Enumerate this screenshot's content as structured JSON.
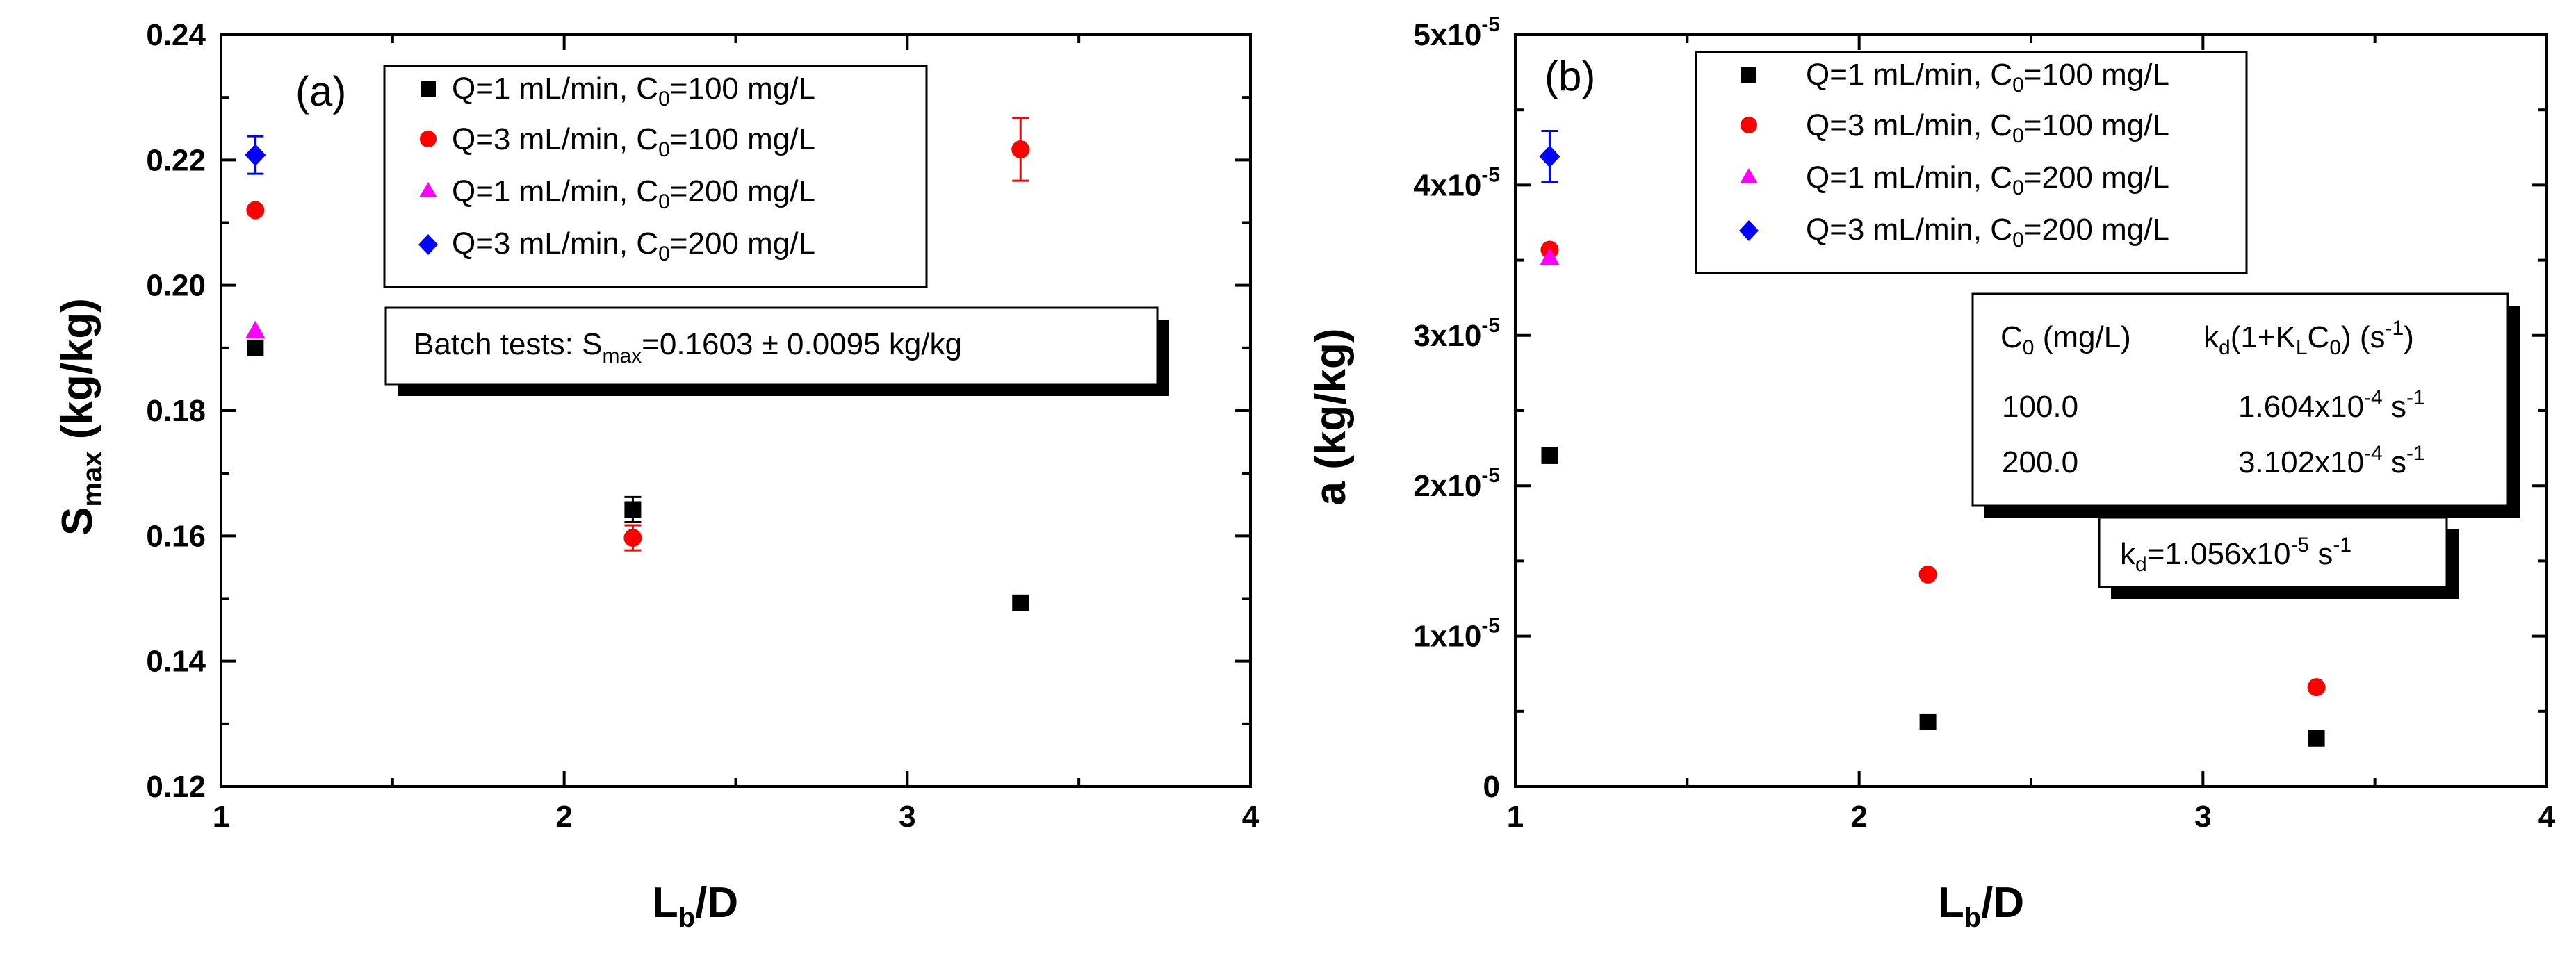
{
  "chart_data": [
    {
      "type": "scatter",
      "panel_label": "(a)",
      "xlabel": "L",
      "xlabel_sub": "b",
      "xlabel_tail": "/D",
      "ylabel": "S",
      "ylabel_sub": "max",
      "ylabel_tail": " (kg/kg)",
      "xlim": [
        1,
        4
      ],
      "ylim": [
        0.12,
        0.24
      ],
      "x_ticks": [
        "1",
        "2",
        "3",
        "4"
      ],
      "y_ticks": [
        "0.12",
        "0.14",
        "0.16",
        "0.18",
        "0.20",
        "0.22",
        "0.24"
      ],
      "legend": {
        "position": "top-center",
        "entries": [
          {
            "pre": "Q=1 mL/min, C",
            "sub": "0",
            "post": "=100 mg/L"
          },
          {
            "pre": "Q=3 mL/min, C",
            "sub": "0",
            "post": "=100 mg/L"
          },
          {
            "pre": "Q=1 mL/min, C",
            "sub": "0",
            "post": "=200 mg/L"
          },
          {
            "pre": "Q=3 mL/min, C",
            "sub": "0",
            "post": "=200 mg/L"
          }
        ]
      },
      "series": [
        {
          "name": "Q=1 mL/min, C0=100 mg/L",
          "marker": "square",
          "color": "#000000",
          "points": [
            {
              "x": 1.1,
              "y": 0.19,
              "err": 0.0
            },
            {
              "x": 2.2,
              "y": 0.1642,
              "err": 0.002
            },
            {
              "x": 3.33,
              "y": 0.1493,
              "err": 0.0
            }
          ]
        },
        {
          "name": "Q=3 mL/min, C0=100 mg/L",
          "marker": "circle",
          "color": "#ff0000",
          "points": [
            {
              "x": 1.1,
              "y": 0.212,
              "err": 0.0
            },
            {
              "x": 2.2,
              "y": 0.1597,
              "err": 0.002
            },
            {
              "x": 3.33,
              "y": 0.2217,
              "err": 0.005
            }
          ]
        },
        {
          "name": "Q=1 mL/min, C0=200 mg/L",
          "marker": "triangle",
          "color": "#ff00ff",
          "points": [
            {
              "x": 1.1,
              "y": 0.1928,
              "err": 0.0
            }
          ]
        },
        {
          "name": "Q=3 mL/min, C0=200 mg/L",
          "marker": "diamond",
          "color": "#0000ff",
          "points": [
            {
              "x": 1.1,
              "y": 0.2208,
              "err": 0.003
            }
          ]
        }
      ],
      "annotation": {
        "pre": "Batch tests: S",
        "sub": "max",
        "post": "=0.1603 ± 0.0095 kg/kg"
      }
    },
    {
      "type": "scatter",
      "panel_label": "(b)",
      "xlabel": "L",
      "xlabel_sub": "b",
      "xlabel_tail": "/D",
      "ylabel": "a (kg/kg)",
      "xlim": [
        1,
        4
      ],
      "ylim": [
        0,
        5e-05
      ],
      "x_ticks": [
        "1",
        "2",
        "3",
        "4"
      ],
      "y_ticks": [
        {
          "base": "0",
          "exp": ""
        },
        {
          "base": "1x10",
          "exp": "-5"
        },
        {
          "base": "2x10",
          "exp": "-5"
        },
        {
          "base": "3x10",
          "exp": "-5"
        },
        {
          "base": "4x10",
          "exp": "-5"
        },
        {
          "base": "5x10",
          "exp": "-5"
        }
      ],
      "legend": {
        "position": "top-center",
        "entries": [
          {
            "pre": "Q=1 mL/min, C",
            "sub": "0",
            "post": "=100 mg/L"
          },
          {
            "pre": "Q=3 mL/min, C",
            "sub": "0",
            "post": "=100 mg/L"
          },
          {
            "pre": "Q=1 mL/min, C",
            "sub": "0",
            "post": "=200 mg/L"
          },
          {
            "pre": "Q=3 mL/min, C",
            "sub": "0",
            "post": "=200 mg/L"
          }
        ]
      },
      "series": [
        {
          "name": "Q=1 mL/min, C0=100 mg/L",
          "marker": "square",
          "color": "#000000",
          "points": [
            {
              "x": 1.1,
              "y": 2.2e-05,
              "err": 0
            },
            {
              "x": 2.2,
              "y": 4.3e-06,
              "err": 0
            },
            {
              "x": 3.33,
              "y": 3.2e-06,
              "err": 0
            }
          ]
        },
        {
          "name": "Q=3 mL/min, C0=100 mg/L",
          "marker": "circle",
          "color": "#ff0000",
          "points": [
            {
              "x": 1.1,
              "y": 3.57e-05,
              "err": 0
            },
            {
              "x": 2.2,
              "y": 1.41e-05,
              "err": 0
            },
            {
              "x": 3.33,
              "y": 6.6e-06,
              "err": 0
            }
          ]
        },
        {
          "name": "Q=1 mL/min, C0=200 mg/L",
          "marker": "triangle",
          "color": "#ff00ff",
          "points": [
            {
              "x": 1.1,
              "y": 3.52e-05,
              "err": 0
            }
          ]
        },
        {
          "name": "Q=3 mL/min, C0=200 mg/L",
          "marker": "diamond",
          "color": "#0000ff",
          "points": [
            {
              "x": 1.1,
              "y": 4.19e-05,
              "err": 1.7e-06
            }
          ]
        }
      ],
      "inset_table": {
        "header": {
          "col1_pre": "C",
          "col1_sub": "0",
          "col1_post": " (mg/L)",
          "col2_a": "k",
          "col2_a_sub": "d",
          "col2_b": "(1+K",
          "col2_b_sub": "L",
          "col2_c": "C",
          "col2_c_sub": "0",
          "col2_d": ") (s",
          "col2_d_sup": "-1",
          "col2_e": ")"
        },
        "rows": [
          {
            "c0": "100.0",
            "value_base": "1.604x10",
            "value_exp": "-4",
            "unit": " s",
            "unit_exp": "-1"
          },
          {
            "c0": "200.0",
            "value_base": "3.102x10",
            "value_exp": "-4",
            "unit": " s",
            "unit_exp": "-1"
          }
        ]
      },
      "annotation": {
        "pre": "k",
        "sub": "d",
        "mid": "=1.056x10",
        "sup": "-5",
        "post": " s",
        "post_sup": "-1"
      }
    }
  ]
}
